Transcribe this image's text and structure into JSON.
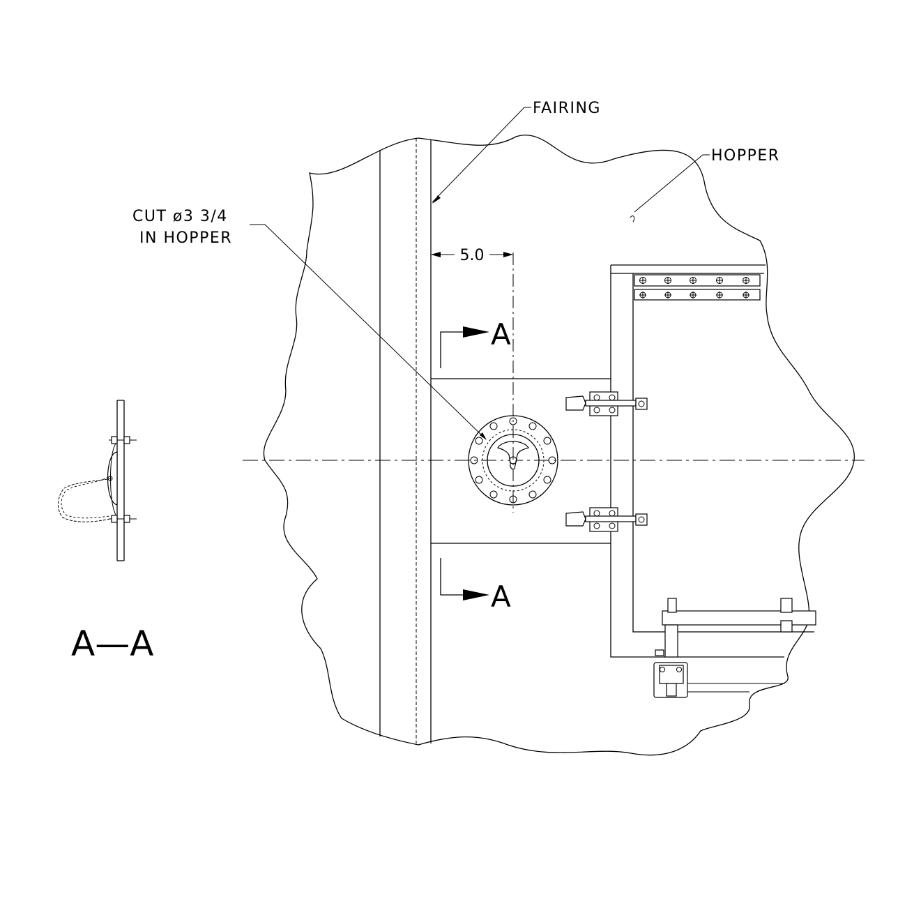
{
  "labels": {
    "fairing": "FAIRING",
    "hopper": "HOPPER",
    "cut_line1": "CUT ø3 3/4",
    "cut_line2": "IN HOPPER",
    "dimension": "5.0",
    "section_marker": "A",
    "section_title": "A—A"
  },
  "colors": {
    "line": "#000000",
    "background": "#ffffff"
  }
}
